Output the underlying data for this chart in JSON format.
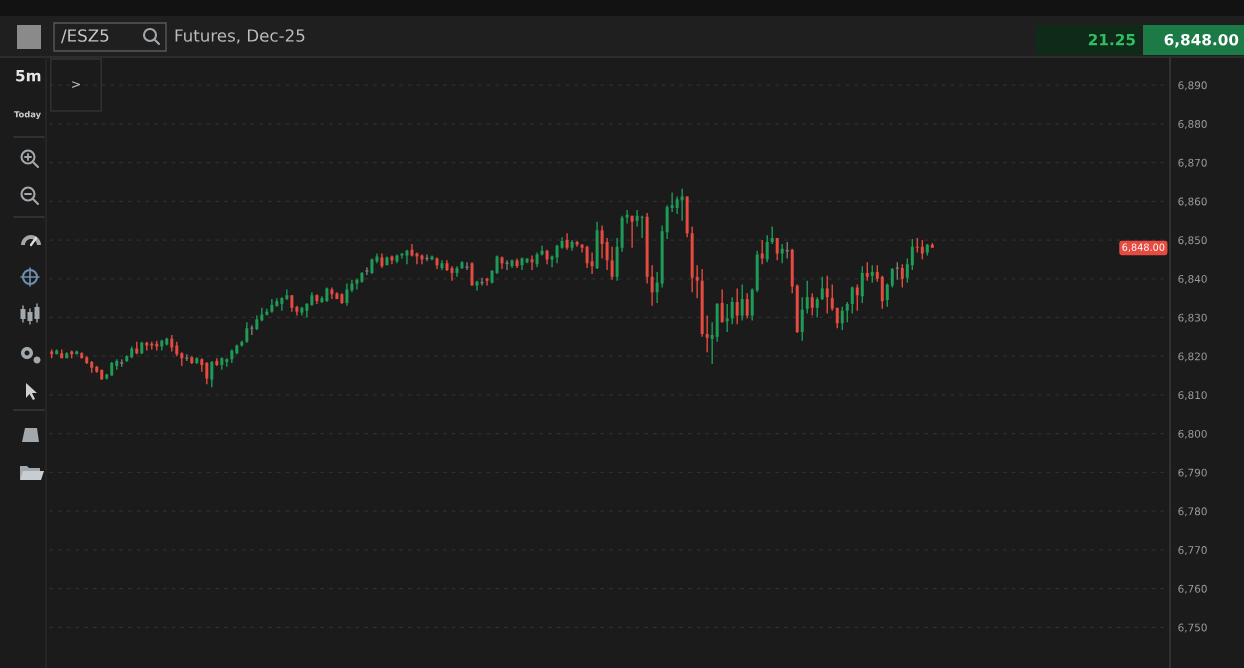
{
  "chart_data": {
    "type": "candlestick",
    "title": "/ESZ5",
    "subtitle": "Futures, Dec-25",
    "annotations": [
      "5m",
      "Today",
      ">",
      "21.25",
      "6,848.00",
      "6,848.00"
    ],
    "categories": [
      null,
      null,
      null,
      null,
      null,
      null,
      null,
      null,
      null,
      null,
      null,
      null,
      null,
      null,
      null,
      null,
      null,
      null,
      null,
      null,
      null,
      null,
      null,
      null,
      null,
      null,
      null,
      null,
      null,
      null,
      null,
      null,
      null,
      null,
      null,
      null,
      null,
      null,
      null,
      null,
      null,
      null,
      null,
      null,
      null,
      null,
      null,
      null,
      null,
      null,
      null,
      null,
      null,
      null,
      null,
      null,
      null,
      null,
      null,
      null,
      null,
      null,
      null,
      null,
      null,
      null,
      null,
      null,
      null,
      null,
      null,
      null,
      null,
      null,
      null,
      null,
      null,
      null,
      null,
      null,
      null,
      null,
      null,
      null,
      null,
      null,
      null,
      null,
      null,
      null,
      null,
      null,
      null,
      null,
      null,
      null,
      null,
      null,
      null,
      null,
      null,
      null,
      null,
      null,
      null,
      null,
      null,
      null,
      null,
      null,
      null,
      null,
      null,
      null,
      null,
      null,
      null,
      null,
      null,
      null,
      null,
      null,
      null,
      null,
      null,
      null,
      null,
      null,
      null,
      null,
      null,
      null,
      null,
      null,
      null,
      null,
      null,
      null,
      null,
      null,
      null,
      null,
      null,
      null,
      null,
      null,
      null,
      null,
      null,
      null,
      null,
      null,
      null,
      null,
      null,
      null,
      null,
      null,
      null,
      null,
      null,
      null,
      null,
      null,
      null,
      null,
      null,
      null,
      null,
      null,
      null,
      null,
      null,
      null,
      null,
      null,
      null,
      null,
      null,
      null,
      null,
      null,
      null,
      null,
      null,
      null,
      null,
      null,
      null,
      null,
      null,
      null,
      null,
      null,
      null,
      null,
      null,
      null,
      null,
      null,
      null,
      null,
      null,
      null,
      null,
      null,
      null,
      null,
      null,
      null,
      null,
      null,
      null,
      null,
      null,
      null,
      null,
      null,
      null,
      null,
      null,
      null,
      null,
      null
    ],
    "ohlc": [
      [
        6821.25,
        6821.75,
        6819.5,
        6820.5
      ],
      [
        6820.5,
        6821.75,
        6820.5,
        6821.5
      ],
      [
        6820.75,
        6821.75,
        6819.5,
        6819.5
      ],
      [
        6819.5,
        6821,
        6819.5,
        6820.75
      ],
      [
        6821.25,
        6821.5,
        6819.5,
        6820.5
      ],
      [
        6820.5,
        6821.5,
        6820.5,
        6821.25
      ],
      [
        6820.75,
        6821,
        6819.5,
        6819.5
      ],
      [
        6819.75,
        6820,
        6818,
        6818.25
      ],
      [
        6818.5,
        6818.75,
        6815.75,
        6817
      ],
      [
        6817.25,
        6817.5,
        6815.75,
        6816
      ],
      [
        6816.5,
        6816.5,
        6814,
        6814
      ],
      [
        6814.25,
        6815.5,
        6814,
        6815.25
      ],
      [
        6815,
        6818.5,
        6815,
        6818.25
      ],
      [
        6817.5,
        6819.25,
        6816.5,
        6818.75
      ],
      [
        6818.25,
        6819.25,
        6817.25,
        6818.25
      ],
      [
        6818.75,
        6820.25,
        6818.5,
        6820
      ],
      [
        6819.75,
        6822.5,
        6819.5,
        6822
      ],
      [
        6822,
        6823.75,
        6820.5,
        6820.75
      ],
      [
        6820.75,
        6823.75,
        6820.5,
        6823.5
      ],
      [
        6823.5,
        6823.75,
        6821.5,
        6822.75
      ],
      [
        6823.25,
        6823.75,
        6821.75,
        6822.75
      ],
      [
        6823.25,
        6824,
        6821.5,
        6822.5
      ],
      [
        6822.5,
        6824.25,
        6821.5,
        6824
      ],
      [
        6823,
        6824.75,
        6822.75,
        6824.5
      ],
      [
        6824.5,
        6825.5,
        6821.25,
        6822.25
      ],
      [
        6822.75,
        6823.75,
        6820,
        6820.5
      ],
      [
        6820.75,
        6821,
        6817.5,
        6819.5
      ],
      [
        6819.5,
        6820.5,
        6818.75,
        6819.5
      ],
      [
        6819.75,
        6820,
        6818,
        6818.25
      ],
      [
        6818.25,
        6819.75,
        6818,
        6819.5
      ],
      [
        6819.25,
        6819.5,
        6816,
        6817.75
      ],
      [
        6818.25,
        6818.5,
        6812.75,
        6814.25
      ],
      [
        6814,
        6818.75,
        6812,
        6818.5
      ],
      [
        6818.75,
        6819.5,
        6817.5,
        6817.75
      ],
      [
        6817.75,
        6819.75,
        6816.5,
        6819.5
      ],
      [
        6818.5,
        6819.5,
        6817.25,
        6819.25
      ],
      [
        6819.25,
        6821.75,
        6818.25,
        6821.5
      ],
      [
        6820.75,
        6823,
        6820.5,
        6822.75
      ],
      [
        6822.75,
        6824,
        6822.5,
        6823.75
      ],
      [
        6823.75,
        6828.75,
        6823.5,
        6827.25
      ],
      [
        6827.25,
        6828,
        6825.5,
        6827.25
      ],
      [
        6827,
        6830.5,
        6826.75,
        6829.5
      ],
      [
        6829.25,
        6832.5,
        6829,
        6830.75
      ],
      [
        6830.75,
        6832.25,
        6830.5,
        6831.5
      ],
      [
        6831.5,
        6834.75,
        6831.25,
        6833.25
      ],
      [
        6833,
        6835,
        6832.75,
        6834.25
      ],
      [
        6833.5,
        6835.25,
        6831.75,
        6835
      ],
      [
        6834.75,
        6837.25,
        6834.5,
        6835.75
      ],
      [
        6835.75,
        6835.75,
        6831.5,
        6832.5
      ],
      [
        6832.75,
        6833,
        6830.5,
        6831.5
      ],
      [
        6831.25,
        6832.75,
        6830.5,
        6832.5
      ],
      [
        6831.75,
        6833.75,
        6830,
        6833.5
      ],
      [
        6833.25,
        6836.5,
        6833,
        6835.75
      ],
      [
        6835.75,
        6836,
        6833.5,
        6834.25
      ],
      [
        6834,
        6835.5,
        6833.75,
        6835
      ],
      [
        6834.25,
        6837.75,
        6834,
        6837.5
      ],
      [
        6837.25,
        6837.75,
        6834.75,
        6836
      ],
      [
        6836.25,
        6836.5,
        6834.75,
        6834.75
      ],
      [
        6836,
        6836.25,
        6833.5,
        6833.75
      ],
      [
        6833.75,
        6838.75,
        6833,
        6837.25
      ],
      [
        6837,
        6839.75,
        6836.5,
        6838.75
      ],
      [
        6838.75,
        6840,
        6837.25,
        6839.75
      ],
      [
        6839.25,
        6841.75,
        6839,
        6841.5
      ],
      [
        6842,
        6843,
        6841,
        6842
      ],
      [
        6841.5,
        6845.25,
        6841.25,
        6845
      ],
      [
        6844.5,
        6846.5,
        6844,
        6845.75
      ],
      [
        6845.5,
        6846.5,
        6842.75,
        6843.25
      ],
      [
        6843.5,
        6845.75,
        6843.5,
        6845.5
      ],
      [
        6845.75,
        6846,
        6843.75,
        6844.75
      ],
      [
        6844.5,
        6846.25,
        6844,
        6846
      ],
      [
        6846,
        6846.5,
        6845.25,
        6846.5
      ],
      [
        6846,
        6847.5,
        6843.75,
        6847.25
      ],
      [
        6847.5,
        6849,
        6845.75,
        6846
      ],
      [
        6846.5,
        6846.75,
        6843.75,
        6845.75
      ],
      [
        6846,
        6846.25,
        6843.75,
        6845
      ],
      [
        6845.25,
        6846.25,
        6844.5,
        6845.25
      ],
      [
        6845,
        6846,
        6844.75,
        6845.75
      ],
      [
        6845.25,
        6845.5,
        6842.5,
        6843.5
      ],
      [
        6842.75,
        6844.75,
        6842.25,
        6844
      ],
      [
        6844,
        6844.75,
        6842,
        6842.25
      ],
      [
        6842.75,
        6843.25,
        6839.5,
        6841.5
      ],
      [
        6841.5,
        6843.25,
        6840.5,
        6842.75
      ],
      [
        6842.75,
        6844.5,
        6842.5,
        6844.25
      ],
      [
        6843,
        6844.25,
        6842.25,
        6843
      ],
      [
        6844,
        6844.25,
        6838.25,
        6838.25
      ],
      [
        6838.25,
        6839.5,
        6837,
        6839.25
      ],
      [
        6839,
        6840.25,
        6838.25,
        6839
      ],
      [
        6840,
        6840.25,
        6838.25,
        6839.5
      ],
      [
        6839,
        6842.25,
        6838.75,
        6842
      ],
      [
        6841.5,
        6846,
        6841.25,
        6845.75
      ],
      [
        6845.5,
        6845.75,
        6842.5,
        6844
      ],
      [
        6844,
        6844.75,
        6842.25,
        6844
      ],
      [
        6843.25,
        6845,
        6842.75,
        6844.75
      ],
      [
        6844.75,
        6845.25,
        6842.75,
        6843.25
      ],
      [
        6843.5,
        6845.5,
        6842.25,
        6845.25
      ],
      [
        6844.25,
        6845.25,
        6844,
        6845.25
      ],
      [
        6845,
        6846,
        6842.25,
        6844.25
      ],
      [
        6843.75,
        6846.75,
        6843,
        6846.25
      ],
      [
        6846.25,
        6848.5,
        6846,
        6847.25
      ],
      [
        6847.25,
        6847.5,
        6843.75,
        6845
      ],
      [
        6845,
        6846,
        6843,
        6845.75
      ],
      [
        6845.5,
        6848.75,
        6844,
        6848.5
      ],
      [
        6848,
        6850.75,
        6847.75,
        6849.75
      ],
      [
        6850,
        6851.75,
        6847.5,
        6848
      ],
      [
        6848,
        6850,
        6847.25,
        6849.5
      ],
      [
        6849.5,
        6849.75,
        6848.25,
        6848.75
      ],
      [
        6848.75,
        6849,
        6846.75,
        6848
      ],
      [
        6848.25,
        6848.5,
        6842.75,
        6844
      ],
      [
        6844.5,
        6846.75,
        6841.25,
        6843.25
      ],
      [
        6842.75,
        6854.75,
        6842.5,
        6852.5
      ],
      [
        6852.5,
        6853.75,
        6845.25,
        6849
      ],
      [
        6849.5,
        6850.5,
        6842.25,
        6844.75
      ],
      [
        6844.75,
        6848.25,
        6839.75,
        6840.5
      ],
      [
        6840.5,
        6850.5,
        6839.5,
        6848.25
      ],
      [
        6848,
        6856.25,
        6847,
        6855.75
      ],
      [
        6855.75,
        6857.75,
        6854.25,
        6856.5
      ],
      [
        6856.25,
        6856.25,
        6848,
        6854.75
      ],
      [
        6855,
        6857.75,
        6853.5,
        6856.25
      ],
      [
        6855.75,
        6856.25,
        6850.5,
        6856
      ],
      [
        6856,
        6857,
        6838.75,
        6840.5
      ],
      [
        6840.5,
        6843.5,
        6833,
        6836.5
      ],
      [
        6836.5,
        6841.75,
        6833.75,
        6839
      ],
      [
        6838.75,
        6853.75,
        6837.75,
        6852.25
      ],
      [
        6852,
        6859,
        6850.25,
        6858.5
      ],
      [
        6858.25,
        6862.25,
        6857.25,
        6859
      ],
      [
        6858.25,
        6861.25,
        6856.75,
        6860.5
      ],
      [
        6860.25,
        6863.25,
        6855,
        6861.25
      ],
      [
        6861.25,
        6861.25,
        6850.75,
        6851.75
      ],
      [
        6851.75,
        6853.5,
        6836.5,
        6840.25
      ],
      [
        6840.5,
        6843.5,
        6835,
        6839.5
      ],
      [
        6839.5,
        6842.5,
        6825,
        6825.75
      ],
      [
        6825.75,
        6830.5,
        6821,
        6824.75
      ],
      [
        6824.5,
        6828.75,
        6818,
        6825.5
      ],
      [
        6825,
        6833.75,
        6823.75,
        6833.5
      ],
      [
        6833.75,
        6837.25,
        6828.75,
        6828.75
      ],
      [
        6829,
        6833.5,
        6826.25,
        6829.75
      ],
      [
        6829.75,
        6835.25,
        6828.25,
        6834
      ],
      [
        6834,
        6837.5,
        6828.25,
        6830.5
      ],
      [
        6830.5,
        6838.5,
        6829.25,
        6834.75
      ],
      [
        6834.75,
        6836.25,
        6829.75,
        6830.5
      ],
      [
        6830.5,
        6837.5,
        6829.25,
        6837.25
      ],
      [
        6837,
        6847.25,
        6836.5,
        6846.25
      ],
      [
        6846.5,
        6850,
        6843.75,
        6845.25
      ],
      [
        6845,
        6851.25,
        6844.25,
        6849.5
      ],
      [
        6849.5,
        6853.5,
        6849,
        6850.5
      ],
      [
        6850.5,
        6850.5,
        6844.75,
        6846.5
      ],
      [
        6846.5,
        6849,
        6844,
        6847.75
      ],
      [
        6847.25,
        6849.5,
        6845.25,
        6847.25
      ],
      [
        6847.5,
        6847.75,
        6836.25,
        6838
      ],
      [
        6838.25,
        6838.5,
        6826,
        6826.25
      ],
      [
        6826.25,
        6835.25,
        6824,
        6832
      ],
      [
        6832.25,
        6839.5,
        6831,
        6835.25
      ],
      [
        6835.25,
        6836.25,
        6830.5,
        6832.5
      ],
      [
        6832.5,
        6835.25,
        6830,
        6834.75
      ],
      [
        6834.75,
        6840.5,
        6834.5,
        6837.5
      ],
      [
        6837.5,
        6840.75,
        6831,
        6835.25
      ],
      [
        6835,
        6838.5,
        6831.75,
        6832.25
      ],
      [
        6832.5,
        6832.5,
        6827.25,
        6828.5
      ],
      [
        6828.5,
        6832.75,
        6826.75,
        6831.75
      ],
      [
        6831.75,
        6834,
        6828.75,
        6833.5
      ],
      [
        6833.5,
        6838,
        6831,
        6837.75
      ],
      [
        6837.75,
        6838.5,
        6831.75,
        6835.75
      ],
      [
        6835.5,
        6843.25,
        6833.75,
        6841.5
      ],
      [
        6841.5,
        6844.25,
        6839.5,
        6840.5
      ],
      [
        6840.75,
        6843.5,
        6839,
        6841.75
      ],
      [
        6841.75,
        6843.5,
        6839.25,
        6840
      ],
      [
        6840.5,
        6840.75,
        6832.25,
        6834.25
      ],
      [
        6834.5,
        6838.75,
        6832.75,
        6838.5
      ],
      [
        6838.25,
        6842.75,
        6837.75,
        6842.5
      ],
      [
        6842.75,
        6844.25,
        6839.75,
        6842.75
      ],
      [
        6842.75,
        6843.75,
        6837.75,
        6840
      ],
      [
        6840.25,
        6845.25,
        6839,
        6843.75
      ],
      [
        6843.5,
        6850.25,
        6842.25,
        6848.25
      ],
      [
        6848.25,
        6850.5,
        6846.75,
        6848
      ],
      [
        6848.25,
        6850,
        6845,
        6846.5
      ],
      [
        6846.75,
        6849,
        6846,
        6848.75
      ],
      [
        6848.75,
        6849.25,
        6848,
        6848
      ],
      null,
      null,
      null,
      null,
      null,
      null,
      null,
      null,
      null,
      null,
      null,
      null,
      null,
      null,
      null,
      null,
      null,
      null,
      null,
      null,
      null,
      null,
      null,
      null,
      null,
      null,
      null,
      null,
      null,
      null,
      null,
      null,
      null,
      null,
      null,
      null,
      null,
      null,
      null,
      null,
      null,
      null,
      null,
      null,
      null,
      null,
      null
    ],
    "colors": [
      "#e54b40",
      "#1e9c57",
      "#e54b40",
      "#1e9c57",
      "#e54b40",
      "#1e9c57",
      "#e54b40",
      "#e54b40",
      "#e54b40",
      "#e54b40",
      "#e54b40",
      "#1e9c57",
      "#1e9c57",
      "#1e9c57",
      "#7d7d7d",
      "#1e9c57",
      "#1e9c57",
      "#e54b40",
      "#1e9c57",
      "#e54b40",
      "#e54b40",
      "#e54b40",
      "#1e9c57",
      "#1e9c57",
      "#e54b40",
      "#e54b40",
      "#e54b40",
      "#7d7d7d",
      "#e54b40",
      "#1e9c57",
      "#e54b40",
      "#e54b40",
      "#1e9c57",
      "#e54b40",
      "#1e9c57",
      "#1e9c57",
      "#1e9c57",
      "#1e9c57",
      "#1e9c57",
      "#1e9c57",
      "#7d7d7d",
      "#1e9c57",
      "#1e9c57",
      "#1e9c57",
      "#1e9c57",
      "#1e9c57",
      "#1e9c57",
      "#1e9c57",
      "#e54b40",
      "#e54b40",
      "#1e9c57",
      "#1e9c57",
      "#1e9c57",
      "#e54b40",
      "#1e9c57",
      "#1e9c57",
      "#e54b40",
      "#e54b40",
      "#e54b40",
      "#1e9c57",
      "#1e9c57",
      "#1e9c57",
      "#1e9c57",
      "#7d7d7d",
      "#1e9c57",
      "#1e9c57",
      "#e54b40",
      "#1e9c57",
      "#e54b40",
      "#1e9c57",
      "#1e9c57",
      "#1e9c57",
      "#e54b40",
      "#e54b40",
      "#e54b40",
      "#7d7d7d",
      "#1e9c57",
      "#e54b40",
      "#1e9c57",
      "#e54b40",
      "#e54b40",
      "#1e9c57",
      "#1e9c57",
      "#7d7d7d",
      "#e54b40",
      "#1e9c57",
      "#7d7d7d",
      "#e54b40",
      "#1e9c57",
      "#1e9c57",
      "#e54b40",
      "#7d7d7d",
      "#1e9c57",
      "#e54b40",
      "#1e9c57",
      "#1e9c57",
      "#e54b40",
      "#1e9c57",
      "#1e9c57",
      "#e54b40",
      "#1e9c57",
      "#1e9c57",
      "#1e9c57",
      "#e54b40",
      "#1e9c57",
      "#e54b40",
      "#e54b40",
      "#e54b40",
      "#e54b40",
      "#1e9c57",
      "#e54b40",
      "#e54b40",
      "#e54b40",
      "#1e9c57",
      "#1e9c57",
      "#1e9c57",
      "#e54b40",
      "#1e9c57",
      "#1e9c57",
      "#e54b40",
      "#e54b40",
      "#1e9c57",
      "#1e9c57",
      "#1e9c57",
      "#1e9c57",
      "#1e9c57",
      "#1e9c57",
      "#e54b40",
      "#e54b40",
      "#e54b40",
      "#e54b40",
      "#e54b40",
      "#1e9c57",
      "#1e9c57",
      "#e54b40",
      "#1e9c57",
      "#1e9c57",
      "#e54b40",
      "#1e9c57",
      "#e54b40",
      "#1e9c57",
      "#1e9c57",
      "#e54b40",
      "#1e9c57",
      "#1e9c57",
      "#e54b40",
      "#1e9c57",
      "#7d7d7d",
      "#e54b40",
      "#e54b40",
      "#1e9c57",
      "#1e9c57",
      "#e54b40",
      "#1e9c57",
      "#1e9c57",
      "#e54b40",
      "#e54b40",
      "#e54b40",
      "#1e9c57",
      "#1e9c57",
      "#1e9c57",
      "#e54b40",
      "#1e9c57",
      "#e54b40",
      "#1e9c57",
      "#e54b40",
      "#e54b40",
      "#1e9c57",
      "#1e9c57",
      "#7d7d7d",
      "#e54b40",
      "#1e9c57",
      "#1e9c57",
      "#e54b40",
      "#e54b40",
      "#1e9c57",
      "#e54b40",
      null,
      null,
      null,
      null,
      null,
      null,
      null,
      null,
      null,
      null,
      null,
      null,
      null,
      null,
      null,
      null,
      null,
      null,
      null,
      null,
      null,
      null,
      null,
      null,
      null,
      null,
      null,
      null,
      null,
      null,
      null,
      null,
      null,
      null,
      null,
      null,
      null,
      null,
      null,
      null,
      null,
      null,
      null,
      null,
      null,
      null,
      null
    ],
    "ylim": [
      6739.5,
      6897
    ],
    "yticks": [
      {
        "value": 6750,
        "label": "6,750"
      },
      {
        "value": 6760,
        "label": "6,760"
      },
      {
        "value": 6770,
        "label": "6,770"
      },
      {
        "value": 6780,
        "label": "6,780"
      },
      {
        "value": 6790,
        "label": "6,790"
      },
      {
        "value": 6800,
        "label": "6,800"
      },
      {
        "value": 6810,
        "label": "6,810"
      },
      {
        "value": 6820,
        "label": "6,820"
      },
      {
        "value": 6830,
        "label": "6,830"
      },
      {
        "value": 6840,
        "label": "6,840"
      },
      {
        "value": 6850,
        "label": "6,850"
      },
      {
        "value": 6860,
        "label": "6,860"
      },
      {
        "value": 6870,
        "label": "6,870"
      },
      {
        "value": 6880,
        "label": "6,880"
      },
      {
        "value": 6890,
        "label": "6,890"
      }
    ],
    "grid": "y",
    "tick_labels": "y"
  }
}
